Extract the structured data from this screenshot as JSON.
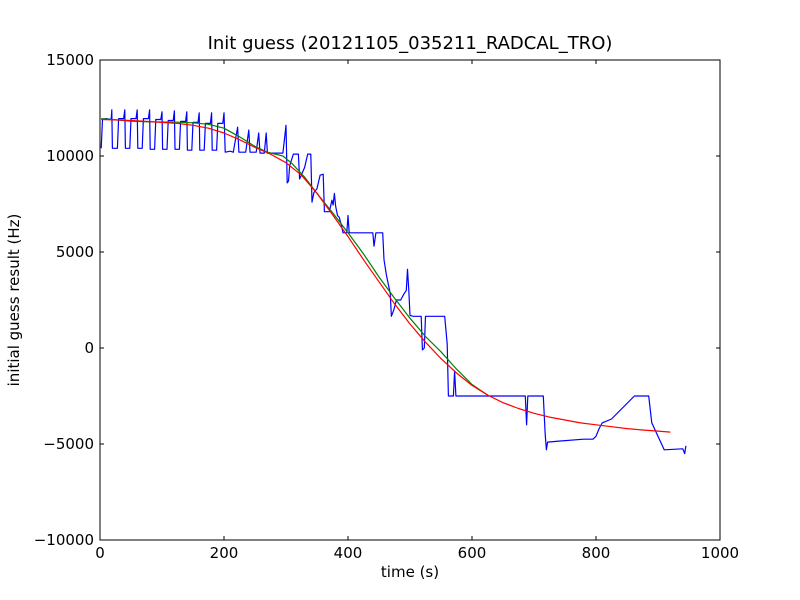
{
  "chart_data": {
    "type": "line",
    "title": "Init guess (20121105_035211_RADCAL_TRO)",
    "xlabel": "time (s)",
    "ylabel": "initial guess result (Hz)",
    "xlim": [
      0,
      1000
    ],
    "ylim": [
      -10000,
      15000
    ],
    "xticks": [
      0,
      200,
      400,
      600,
      800,
      1000
    ],
    "yticks": [
      -10000,
      -5000,
      0,
      5000,
      10000,
      15000
    ],
    "xtick_labels": [
      "0",
      "200",
      "400",
      "600",
      "800",
      "1000"
    ],
    "ytick_labels": [
      "−10000",
      "−5000",
      "0",
      "5000",
      "10000",
      "15000"
    ],
    "grid": false,
    "series": [
      {
        "color": "#0000ff",
        "points": [
          [
            2,
            10400
          ],
          [
            4,
            11900
          ],
          [
            10,
            11950
          ],
          [
            18,
            11900
          ],
          [
            19,
            12400
          ],
          [
            20,
            10400
          ],
          [
            28,
            10400
          ],
          [
            30,
            11950
          ],
          [
            38,
            11950
          ],
          [
            40,
            12400
          ],
          [
            41,
            10400
          ],
          [
            48,
            10400
          ],
          [
            50,
            11950
          ],
          [
            58,
            11950
          ],
          [
            60,
            12400
          ],
          [
            61,
            10400
          ],
          [
            68,
            10400
          ],
          [
            70,
            11950
          ],
          [
            78,
            11950
          ],
          [
            80,
            12400
          ],
          [
            81,
            10350
          ],
          [
            88,
            10350
          ],
          [
            90,
            11900
          ],
          [
            98,
            11900
          ],
          [
            100,
            12300
          ],
          [
            101,
            10350
          ],
          [
            108,
            10350
          ],
          [
            110,
            11850
          ],
          [
            118,
            11850
          ],
          [
            120,
            12350
          ],
          [
            121,
            10350
          ],
          [
            128,
            10350
          ],
          [
            130,
            11800
          ],
          [
            138,
            11800
          ],
          [
            140,
            12300
          ],
          [
            141,
            10300
          ],
          [
            148,
            10300
          ],
          [
            150,
            11750
          ],
          [
            158,
            11750
          ],
          [
            160,
            12250
          ],
          [
            161,
            10300
          ],
          [
            168,
            10300
          ],
          [
            170,
            11700
          ],
          [
            178,
            11700
          ],
          [
            180,
            12250
          ],
          [
            181,
            10300
          ],
          [
            188,
            10300
          ],
          [
            190,
            11700
          ],
          [
            198,
            11700
          ],
          [
            200,
            12250
          ],
          [
            202,
            10200
          ],
          [
            210,
            10250
          ],
          [
            215,
            10200
          ],
          [
            222,
            11500
          ],
          [
            224,
            10200
          ],
          [
            235,
            10200
          ],
          [
            240,
            11350
          ],
          [
            242,
            10200
          ],
          [
            252,
            10200
          ],
          [
            256,
            11200
          ],
          [
            258,
            10150
          ],
          [
            265,
            10150
          ],
          [
            268,
            11200
          ],
          [
            270,
            10150
          ],
          [
            295,
            10150
          ],
          [
            300,
            11600
          ],
          [
            302,
            8600
          ],
          [
            304,
            8700
          ],
          [
            306,
            9500
          ],
          [
            312,
            10100
          ],
          [
            320,
            10100
          ],
          [
            322,
            8800
          ],
          [
            330,
            9400
          ],
          [
            335,
            10100
          ],
          [
            340,
            10100
          ],
          [
            342,
            7600
          ],
          [
            345,
            8100
          ],
          [
            350,
            8300
          ],
          [
            355,
            9000
          ],
          [
            360,
            9050
          ],
          [
            362,
            7100
          ],
          [
            370,
            7100
          ],
          [
            374,
            7700
          ],
          [
            376,
            7450
          ],
          [
            378,
            8050
          ],
          [
            380,
            7400
          ],
          [
            383,
            6900
          ],
          [
            386,
            6800
          ],
          [
            390,
            6300
          ],
          [
            392,
            6000
          ],
          [
            398,
            6000
          ],
          [
            400,
            6900
          ],
          [
            402,
            6000
          ],
          [
            440,
            6000
          ],
          [
            442,
            5300
          ],
          [
            445,
            6000
          ],
          [
            456,
            6000
          ],
          [
            458,
            4600
          ],
          [
            462,
            3800
          ],
          [
            468,
            2850
          ],
          [
            470,
            1650
          ],
          [
            474,
            2000
          ],
          [
            478,
            2500
          ],
          [
            485,
            2500
          ],
          [
            490,
            2800
          ],
          [
            494,
            3000
          ],
          [
            496,
            4100
          ],
          [
            498,
            3000
          ],
          [
            500,
            1700
          ],
          [
            505,
            1650
          ],
          [
            518,
            1650
          ],
          [
            520,
            -100
          ],
          [
            523,
            0
          ],
          [
            525,
            1650
          ],
          [
            545,
            1650
          ],
          [
            556,
            1650
          ],
          [
            560,
            200
          ],
          [
            562,
            -2500
          ],
          [
            570,
            -2500
          ],
          [
            572,
            -1200
          ],
          [
            574,
            -2500
          ],
          [
            676,
            -2500
          ],
          [
            684,
            -2500
          ],
          [
            686,
            -2500
          ],
          [
            688,
            -4000
          ],
          [
            690,
            -2500
          ],
          [
            700,
            -2500
          ],
          [
            702,
            -2500
          ],
          [
            715,
            -2500
          ],
          [
            718,
            -4500
          ],
          [
            720,
            -5300
          ],
          [
            722,
            -4900
          ],
          [
            740,
            -4850
          ],
          [
            780,
            -4750
          ],
          [
            795,
            -4750
          ],
          [
            800,
            -4600
          ],
          [
            805,
            -4200
          ],
          [
            810,
            -3900
          ],
          [
            825,
            -3700
          ],
          [
            862,
            -2500
          ],
          [
            885,
            -2500
          ],
          [
            890,
            -3900
          ],
          [
            910,
            -5300
          ],
          [
            940,
            -5250
          ],
          [
            943,
            -5500
          ],
          [
            945,
            -5100
          ]
        ]
      },
      {
        "color": "#008000",
        "points": [
          [
            2,
            11950
          ],
          [
            25,
            11880
          ],
          [
            50,
            11820
          ],
          [
            75,
            11780
          ],
          [
            100,
            11770
          ],
          [
            125,
            11760
          ],
          [
            150,
            11730
          ],
          [
            175,
            11650
          ],
          [
            200,
            11450
          ],
          [
            225,
            11000
          ],
          [
            250,
            10500
          ],
          [
            270,
            10200
          ],
          [
            295,
            10000
          ],
          [
            310,
            9600
          ],
          [
            330,
            8900
          ],
          [
            350,
            8050
          ],
          [
            375,
            7050
          ],
          [
            400,
            6000
          ],
          [
            425,
            4900
          ],
          [
            450,
            3700
          ],
          [
            475,
            2600
          ],
          [
            500,
            1550
          ],
          [
            525,
            600
          ],
          [
            550,
            -200
          ],
          [
            575,
            -1100
          ],
          [
            600,
            -1900
          ],
          [
            625,
            -2450
          ]
        ]
      },
      {
        "color": "#ff0000",
        "points": [
          [
            2,
            11900
          ],
          [
            25,
            11880
          ],
          [
            50,
            11850
          ],
          [
            75,
            11800
          ],
          [
            100,
            11750
          ],
          [
            125,
            11700
          ],
          [
            150,
            11600
          ],
          [
            175,
            11450
          ],
          [
            200,
            11200
          ],
          [
            225,
            10850
          ],
          [
            250,
            10450
          ],
          [
            275,
            10100
          ],
          [
            300,
            9650
          ],
          [
            325,
            9000
          ],
          [
            350,
            8050
          ],
          [
            375,
            6950
          ],
          [
            400,
            5800
          ],
          [
            425,
            4600
          ],
          [
            450,
            3450
          ],
          [
            475,
            2300
          ],
          [
            500,
            1250
          ],
          [
            525,
            300
          ],
          [
            550,
            -550
          ],
          [
            575,
            -1300
          ],
          [
            600,
            -1950
          ],
          [
            625,
            -2450
          ],
          [
            650,
            -2850
          ],
          [
            675,
            -3150
          ],
          [
            700,
            -3400
          ],
          [
            725,
            -3600
          ],
          [
            750,
            -3750
          ],
          [
            775,
            -3900
          ],
          [
            800,
            -4000
          ],
          [
            825,
            -4100
          ],
          [
            850,
            -4200
          ],
          [
            875,
            -4270
          ],
          [
            900,
            -4330
          ],
          [
            920,
            -4380
          ]
        ]
      }
    ]
  }
}
